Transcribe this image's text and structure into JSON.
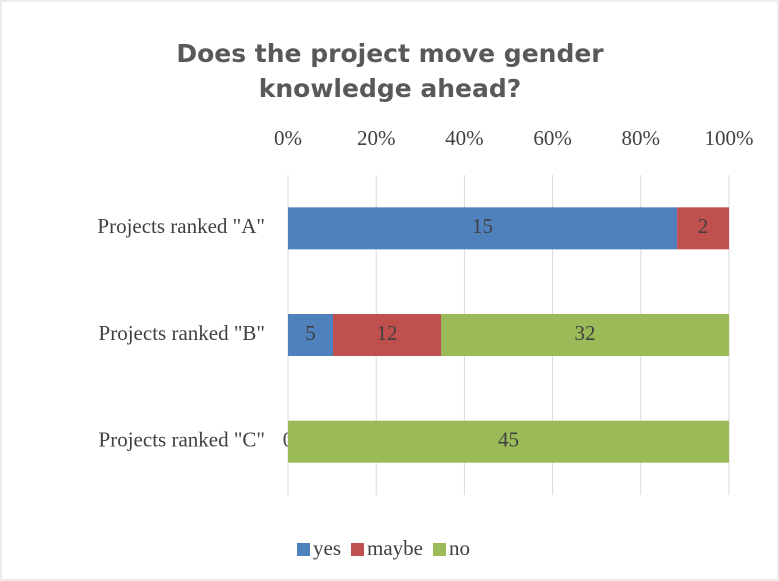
{
  "chart_data": {
    "type": "bar",
    "orientation": "horizontal",
    "stacking": "percent",
    "title": "Does the project move gender knowledge ahead?",
    "categories": [
      "Projects ranked \"A\"",
      "Projects ranked \"B\"",
      "Projects ranked \"C\""
    ],
    "series": [
      {
        "name": "yes",
        "color": "#4f81bd",
        "values": [
          15,
          5,
          0
        ]
      },
      {
        "name": "maybe",
        "color": "#c0504d",
        "values": [
          2,
          12,
          null
        ]
      },
      {
        "name": "no",
        "color": "#9bbb59",
        "values": [
          null,
          32,
          45
        ]
      }
    ],
    "xlim": [
      0,
      100
    ],
    "xticks": [
      {
        "value": 0,
        "label": "0%"
      },
      {
        "value": 20,
        "label": "20%"
      },
      {
        "value": 40,
        "label": "40%"
      },
      {
        "value": 60,
        "label": "60%"
      },
      {
        "value": 80,
        "label": "80%"
      },
      {
        "value": 100,
        "label": "100%"
      }
    ],
    "grid": true,
    "legend": "bottom"
  }
}
